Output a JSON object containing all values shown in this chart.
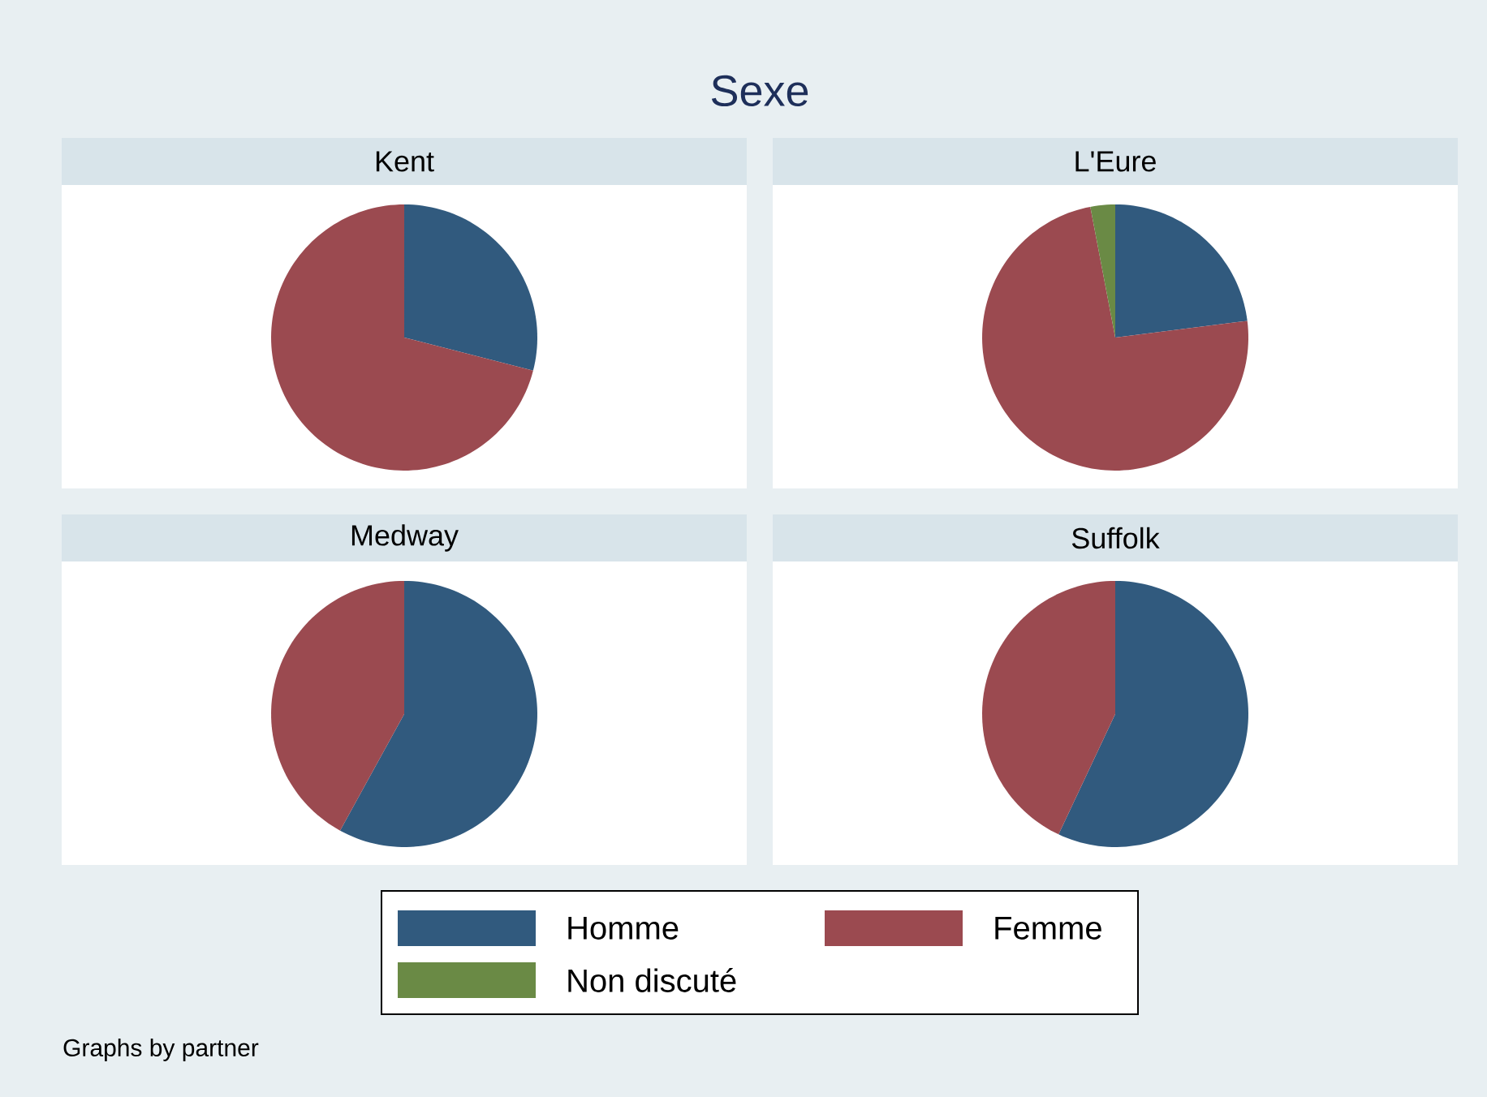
{
  "chart_data": [
    {
      "type": "pie",
      "title": "Kent",
      "categories": [
        null,
        null,
        null
      ],
      "values": [
        29,
        71,
        0
      ],
      "colors": [
        "#315a7e",
        "#9b4a50",
        "#6a8a45"
      ]
    },
    {
      "type": "pie",
      "title": "L'Eure",
      "categories": [
        "Homme",
        "Femme",
        "Non discuté"
      ],
      "values": [
        23,
        74,
        3
      ],
      "colors": [
        "#315a7e",
        "#9b4a50",
        "#6a8a45"
      ],
      "legend": "bottom"
    },
    {
      "type": "pie",
      "title": "Medway",
      "categories": [
        null,
        null,
        null
      ],
      "values": [
        58,
        42,
        0
      ],
      "colors": [
        "#315a7e",
        "#9b4a50",
        "#6a8a45"
      ]
    },
    {
      "type": "pie",
      "title": "Suffolk",
      "categories": [
        null,
        null,
        null
      ],
      "values": [
        57,
        43,
        0
      ],
      "colors": [
        "#315a7e",
        "#9b4a50",
        "#6a8a45"
      ]
    },
    {
      "type": "other",
      "title": "Sexe",
      "annotations": [
        "Graphs by partner"
      ]
    }
  ]
}
